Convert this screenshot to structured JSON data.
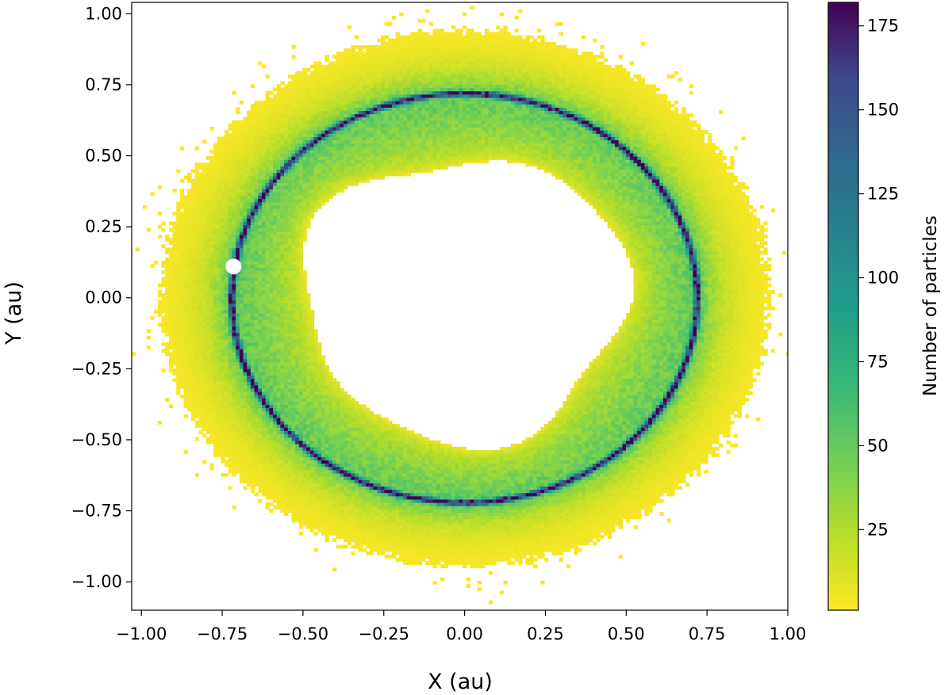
{
  "chart_data": {
    "type": "heatmap",
    "title": "",
    "xlabel": "X (au)",
    "ylabel": "Y (au)",
    "xlim": [
      -1.03,
      1.0
    ],
    "ylim": [
      -1.1,
      1.04
    ],
    "x_ticks": [
      -1.0,
      -0.75,
      -0.5,
      -0.25,
      0.0,
      0.25,
      0.5,
      0.75,
      1.0
    ],
    "x_tick_labels": [
      "−1.00",
      "−0.75",
      "−0.50",
      "−0.25",
      "0.00",
      "0.25",
      "0.50",
      "0.75",
      "1.00"
    ],
    "y_ticks": [
      1.0,
      0.75,
      0.5,
      0.25,
      0.0,
      -0.25,
      -0.5,
      -0.75,
      -1.0
    ],
    "y_tick_labels": [
      "1.00",
      "0.75",
      "0.50",
      "0.25",
      "0.00",
      "−0.25",
      "−0.50",
      "−0.75",
      "−1.00"
    ],
    "colormap": "viridis_r",
    "colorbar": {
      "label": "Number of particles",
      "range": [
        1,
        182
      ],
      "ticks": [
        25,
        50,
        75,
        100,
        125,
        150,
        175
      ],
      "tick_labels": [
        "25",
        "50",
        "75",
        "100",
        "125",
        "150",
        "175"
      ]
    },
    "distribution": {
      "description": "2D histogram of particle positions forming a ring",
      "ring_center": [
        0.0,
        0.0
      ],
      "ring_radius_x": 0.72,
      "ring_radius_y": 0.72,
      "peak_count": 182,
      "inner_void_radius": 0.5,
      "outer_extent_radius": 1.0,
      "bin_width": 0.0115
    },
    "marker": {
      "x": -0.715,
      "y": 0.11,
      "color": "#ffffff"
    }
  }
}
